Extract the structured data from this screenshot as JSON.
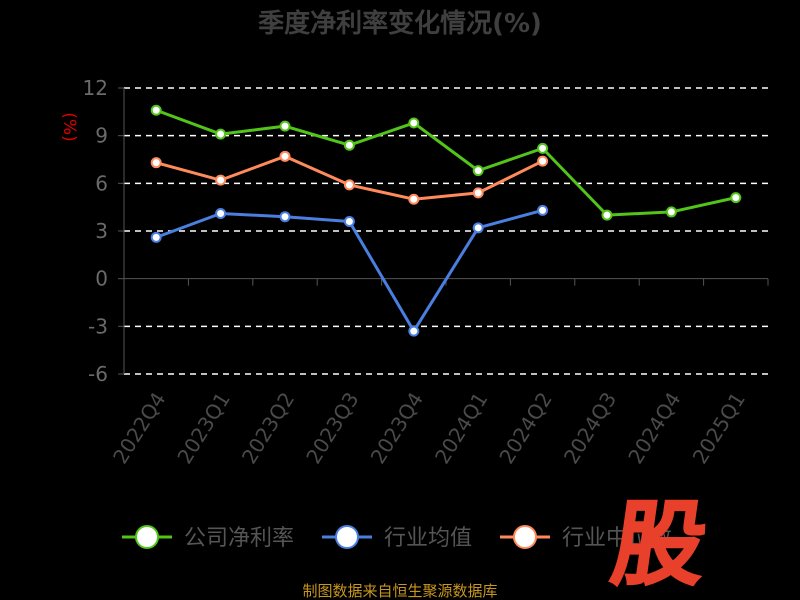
{
  "chart_data": {
    "type": "line",
    "title": "季度净利率变化情况(%)",
    "y_unit": "(%)",
    "categories": [
      "2022Q4",
      "2023Q1",
      "2023Q2",
      "2023Q3",
      "2023Q4",
      "2024Q1",
      "2024Q2",
      "2024Q3",
      "2024Q4",
      "2025Q1"
    ],
    "series": [
      {
        "name": "公司净利率",
        "color": "#52c41a",
        "values": [
          10.6,
          9.1,
          9.6,
          8.4,
          9.8,
          6.8,
          8.2,
          4.0,
          4.2,
          5.1
        ]
      },
      {
        "name": "行业均值",
        "color": "#4a7fe0",
        "values": [
          2.6,
          4.1,
          3.9,
          3.6,
          -3.3,
          3.2,
          4.3,
          null,
          null,
          null
        ]
      },
      {
        "name": "行业中位数",
        "color": "#ff8a5c",
        "values": [
          7.3,
          6.2,
          7.7,
          5.9,
          5.0,
          5.4,
          7.4,
          null,
          null,
          null
        ]
      }
    ],
    "ylim": [
      -6,
      12
    ],
    "yticks": [
      "12",
      "9",
      "6",
      "3",
      "0",
      "-3",
      "-6"
    ],
    "grid": true,
    "legend": "bottom"
  },
  "source_text": "制图数据来自恒生聚源数据库",
  "logo_text": "股"
}
